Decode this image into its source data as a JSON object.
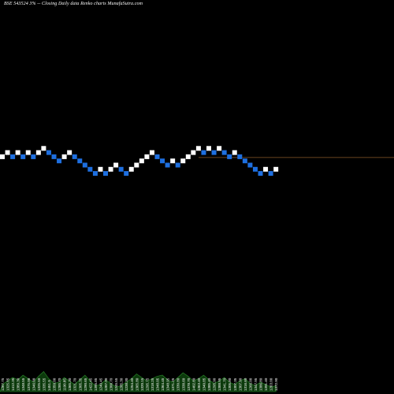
{
  "colors": {
    "background": "#000000",
    "up_brick": "#ffffff",
    "down_brick": "#1e6fe0",
    "reference_line": "#8a5a2a",
    "volume_area": "#0c3a0c",
    "volume_stroke": "#2a8a2a"
  },
  "chart_data": {
    "type": "renko",
    "title": "BSE 543524  3% -- Closing Daily data  Renko  charts MunafaSutra.com",
    "brick_size_percent": 3,
    "bricks": [
      {
        "dir": "up",
        "level": 7
      },
      {
        "dir": "up",
        "level": 8
      },
      {
        "dir": "down",
        "level": 7
      },
      {
        "dir": "up",
        "level": 8
      },
      {
        "dir": "down",
        "level": 7
      },
      {
        "dir": "up",
        "level": 8
      },
      {
        "dir": "down",
        "level": 7
      },
      {
        "dir": "up",
        "level": 8
      },
      {
        "dir": "up",
        "level": 9
      },
      {
        "dir": "down",
        "level": 8
      },
      {
        "dir": "down",
        "level": 7
      },
      {
        "dir": "down",
        "level": 6
      },
      {
        "dir": "up",
        "level": 7
      },
      {
        "dir": "up",
        "level": 8
      },
      {
        "dir": "down",
        "level": 7
      },
      {
        "dir": "down",
        "level": 6
      },
      {
        "dir": "down",
        "level": 5
      },
      {
        "dir": "down",
        "level": 4
      },
      {
        "dir": "down",
        "level": 3
      },
      {
        "dir": "up",
        "level": 4
      },
      {
        "dir": "down",
        "level": 3
      },
      {
        "dir": "up",
        "level": 4
      },
      {
        "dir": "up",
        "level": 5
      },
      {
        "dir": "down",
        "level": 4
      },
      {
        "dir": "down",
        "level": 3
      },
      {
        "dir": "up",
        "level": 4
      },
      {
        "dir": "up",
        "level": 5
      },
      {
        "dir": "up",
        "level": 6
      },
      {
        "dir": "up",
        "level": 7
      },
      {
        "dir": "up",
        "level": 8
      },
      {
        "dir": "down",
        "level": 7
      },
      {
        "dir": "down",
        "level": 6
      },
      {
        "dir": "down",
        "level": 5
      },
      {
        "dir": "up",
        "level": 6
      },
      {
        "dir": "down",
        "level": 5
      },
      {
        "dir": "up",
        "level": 6
      },
      {
        "dir": "up",
        "level": 7
      },
      {
        "dir": "up",
        "level": 8
      },
      {
        "dir": "up",
        "level": 9
      },
      {
        "dir": "down",
        "level": 8
      },
      {
        "dir": "up",
        "level": 9
      },
      {
        "dir": "down",
        "level": 8
      },
      {
        "dir": "up",
        "level": 9
      },
      {
        "dir": "down",
        "level": 8
      },
      {
        "dir": "down",
        "level": 7
      },
      {
        "dir": "up",
        "level": 8
      },
      {
        "dir": "down",
        "level": 7
      },
      {
        "dir": "down",
        "level": 6
      },
      {
        "dir": "down",
        "level": 5
      },
      {
        "dir": "down",
        "level": 4
      },
      {
        "dir": "down",
        "level": 3
      },
      {
        "dir": "up",
        "level": 4
      },
      {
        "dir": "down",
        "level": 3
      },
      {
        "dir": "up",
        "level": 4
      }
    ],
    "reference_line_level": 7,
    "price_labels": [
      "1267.75",
      "1325.85",
      "1412.35",
      "1389.30",
      "1348.55",
      "1375.00",
      "1346.00",
      "1325.50",
      "1335.55",
      "1451.9",
      "1350.00",
      "1285.70",
      "1190.85",
      "1365.30",
      "1321.70",
      "1305.35",
      "1290.65",
      "1422.45",
      "1395.85",
      "1240.45",
      "1287.90",
      "1300.70",
      "1245.55",
      "1285.30",
      "1238.30",
      "1254.40",
      "1365.80",
      "1320.15",
      "1295.75",
      "1318.25",
      "1348.05",
      "1364.45",
      "1348.95",
      "1371.25",
      "1330.80",
      "1338.60",
      "1378.70",
      "1402.80",
      "1363.40",
      "1340.85",
      "1385.40",
      "1295.90",
      "1388.95",
      "1341.70",
      "1305.80",
      "1307.35",
      "1307.90",
      "1316.60",
      "1266.00",
      "1347.95",
      "1386.80",
      "1391.40",
      "1263.00",
      "1372.90"
    ],
    "volume_profile": [
      0.3,
      0.45,
      0.6,
      0.5,
      0.7,
      0.55,
      0.4,
      0.65,
      0.85,
      0.55,
      0.35,
      0.4,
      0.6,
      0.45,
      0.3,
      0.5,
      0.7,
      0.45,
      0.25,
      0.3,
      0.5,
      0.35,
      0.2,
      0.25,
      0.4,
      0.55,
      0.75,
      0.6,
      0.45,
      0.55,
      0.65,
      0.7,
      0.5,
      0.4,
      0.6,
      0.8,
      0.65,
      0.45,
      0.55,
      0.7,
      0.5,
      0.35,
      0.45,
      0.6,
      0.4,
      0.3,
      0.45,
      0.55,
      0.35,
      0.25,
      0.4,
      0.3,
      0.2,
      0.25
    ]
  }
}
